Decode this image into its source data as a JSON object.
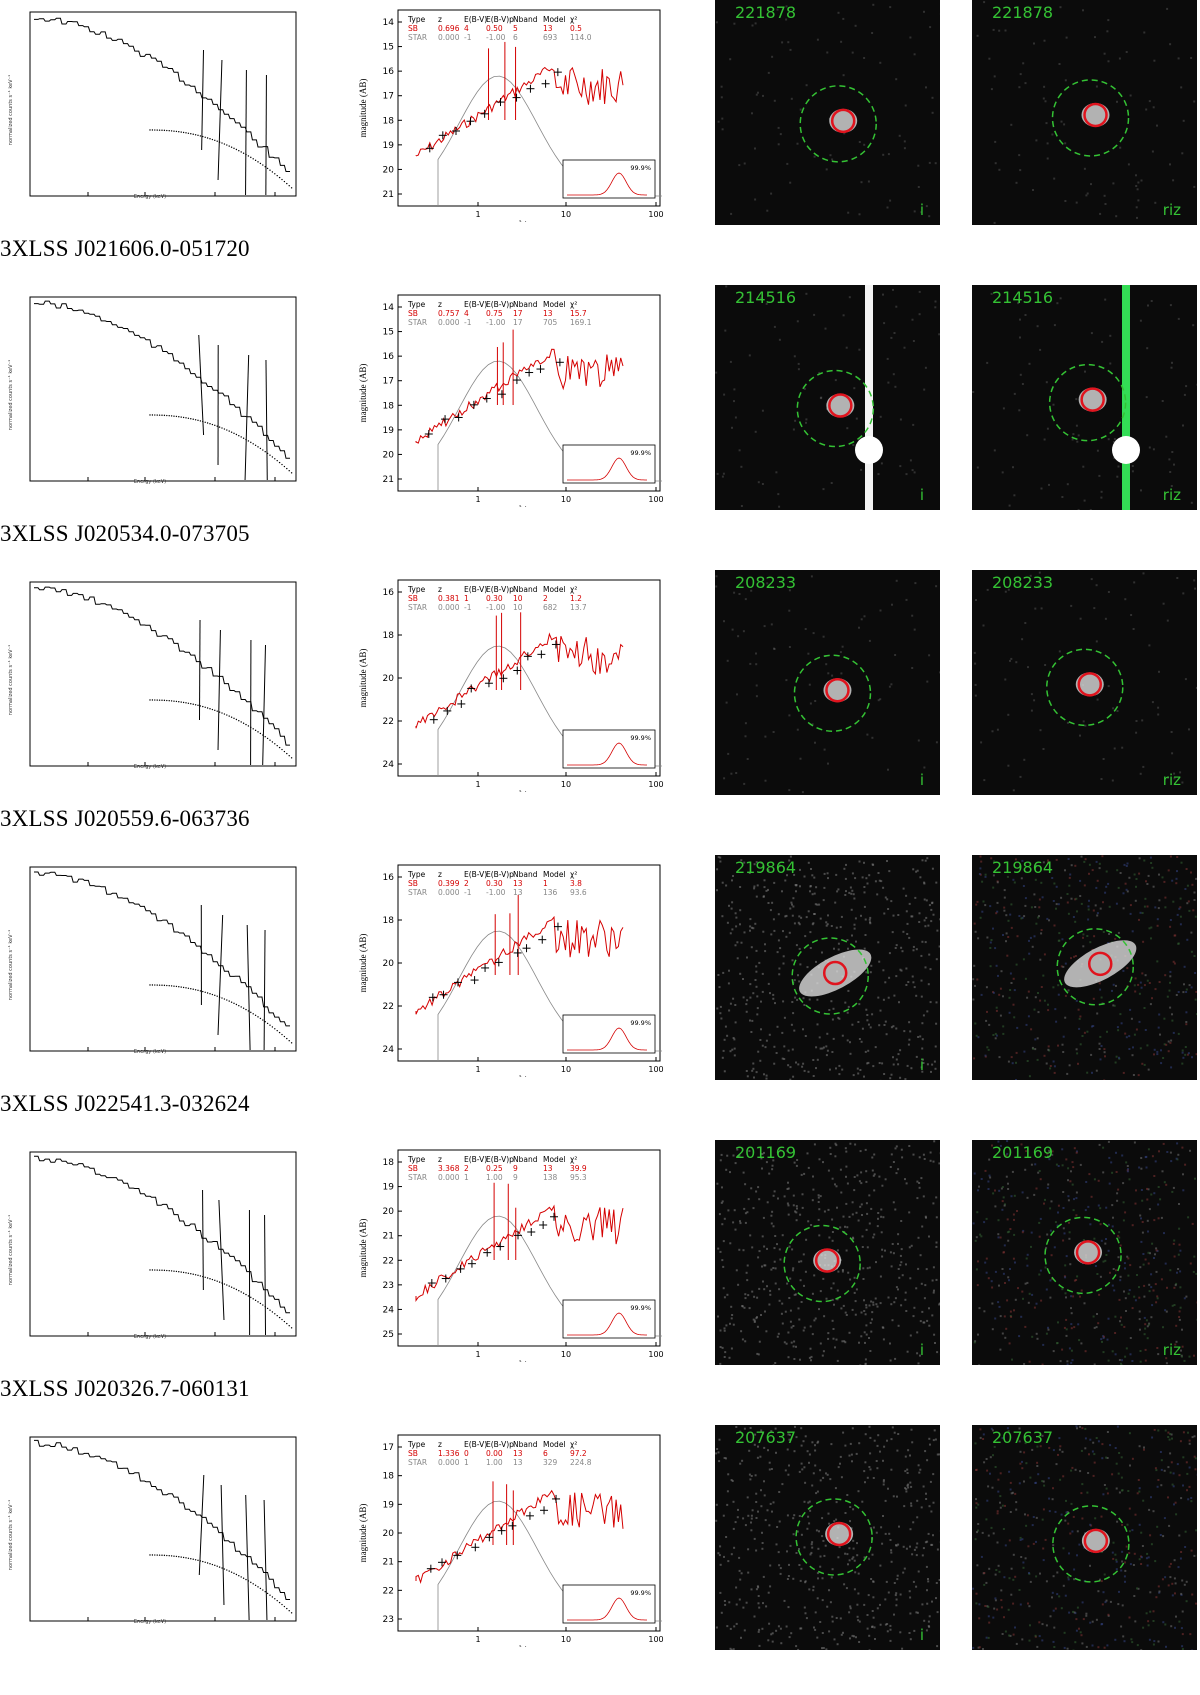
{
  "rows": [
    {
      "source_name": "",
      "object_id": "221878",
      "band_i": "i",
      "band_riz": "riz",
      "sed": {
        "SB": [
          "SB",
          "0.696",
          "4",
          "0.50",
          "5",
          "13",
          "0.5"
        ],
        "STAR": [
          "STAR",
          "0.000",
          "-1",
          "-1.00",
          "6",
          "693",
          "114.0"
        ],
        "pdf": "99.9%",
        "yticks": [
          "14",
          "15",
          "16",
          "17",
          "18",
          "19",
          "20",
          "21"
        ]
      }
    },
    {
      "source_name": "3XLSS J021606.0-051720",
      "object_id": "214516",
      "band_i": "i",
      "band_riz": "riz",
      "sed": {
        "SB": [
          "SB",
          "0.757",
          "4",
          "0.75",
          "17",
          "13",
          "15.7"
        ],
        "STAR": [
          "STAR",
          "0.000",
          "-1",
          "-1.00",
          "17",
          "705",
          "169.1"
        ],
        "pdf": "99.9%",
        "yticks": [
          "14",
          "15",
          "16",
          "17",
          "18",
          "19",
          "20",
          "21"
        ]
      }
    },
    {
      "source_name": "3XLSS J020534.0-073705",
      "object_id": "208233",
      "band_i": "i",
      "band_riz": "riz",
      "sed": {
        "SB": [
          "SB",
          "0.381",
          "1",
          "0.30",
          "10",
          "2",
          "1.2"
        ],
        "STAR": [
          "STAR",
          "0.000",
          "-1",
          "-1.00",
          "10",
          "682",
          "13.7"
        ],
        "pdf": "99.9%",
        "yticks": [
          "16",
          "18",
          "20",
          "22",
          "24"
        ]
      }
    },
    {
      "source_name": "3XLSS J020559.6-063736",
      "object_id": "219864",
      "band_i": "i",
      "band_riz": "",
      "sed": {
        "SB": [
          "SB",
          "0.399",
          "2",
          "0.30",
          "13",
          "1",
          "3.8"
        ],
        "STAR": [
          "STAR",
          "0.000",
          "-1",
          "-1.00",
          "13",
          "136",
          "93.6"
        ],
        "pdf": "99.9%",
        "yticks": [
          "16",
          "18",
          "20",
          "22",
          "24"
        ]
      }
    },
    {
      "source_name": "3XLSS J022541.3-032624",
      "object_id": "201169",
      "band_i": "i",
      "band_riz": "riz",
      "sed": {
        "SB": [
          "SB",
          "3.368",
          "2",
          "0.25",
          "9",
          "13",
          "39.9"
        ],
        "STAR": [
          "STAR",
          "0.000",
          "1",
          "1.00",
          "9",
          "138",
          "95.3"
        ],
        "pdf": "99.9%",
        "yticks": [
          "18",
          "19",
          "20",
          "21",
          "22",
          "23",
          "24",
          "25"
        ]
      }
    },
    {
      "source_name": "3XLSS J020326.7-060131",
      "object_id": "207637",
      "band_i": "i",
      "band_riz": "",
      "sed": {
        "SB": [
          "SB",
          "1.336",
          "0",
          "0.00",
          "13",
          "6",
          "97.2"
        ],
        "STAR": [
          "STAR",
          "0.000",
          "1",
          "1.00",
          "13",
          "329",
          "224.8"
        ],
        "pdf": "99.9%",
        "yticks": [
          "17",
          "18",
          "19",
          "20",
          "21",
          "22",
          "23"
        ]
      }
    }
  ],
  "sed_common": {
    "header": [
      "Type",
      "z",
      "E(B-V)",
      "E(B-V)p",
      "Nband",
      "Model",
      "χ²"
    ],
    "xticks": [
      "1",
      "10",
      "100"
    ],
    "xlabel": "λ/μm",
    "ylabel": "magnitude (AB)"
  },
  "xray_common": {
    "xticks": [
      "1",
      "2",
      "5",
      "10"
    ],
    "xlabel": "Energy (keV)",
    "ylabel": "normalized counts s⁻¹ keV⁻¹"
  },
  "colors": {
    "sb": "#d40000",
    "star": "#888888",
    "label_green": "#34c234",
    "aperture_red": "#e0141e"
  }
}
